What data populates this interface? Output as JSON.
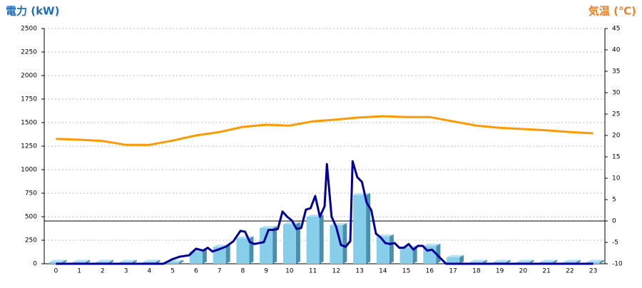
{
  "chart_data": {
    "type": "bar",
    "y_label": "電力 (kW)",
    "y2_label": "気温 (℃)",
    "categories": [
      "0",
      "1",
      "2",
      "3",
      "4",
      "5",
      "6",
      "7",
      "8",
      "9",
      "10",
      "11",
      "12",
      "13",
      "14",
      "15",
      "16",
      "17",
      "18",
      "19",
      "20",
      "21",
      "22",
      "23"
    ],
    "ylim": [
      0,
      2500
    ],
    "yticks": [
      0,
      250,
      500,
      750,
      1000,
      1250,
      1500,
      1750,
      2000,
      2250,
      2500
    ],
    "y2lim": [
      -10,
      45
    ],
    "y2ticks": [
      -10,
      -5,
      0,
      5,
      10,
      15,
      20,
      25,
      30,
      35,
      40,
      45
    ],
    "grid": true,
    "y2_zero_line": true,
    "series": [
      {
        "type": "bar",
        "color": "#87ceeb",
        "values": [
          20,
          20,
          20,
          20,
          20,
          20,
          130,
          180,
          270,
          380,
          420,
          500,
          410,
          730,
          290,
          170,
          190,
          70,
          20,
          20,
          20,
          20,
          20,
          20
        ]
      },
      {
        "type": "line",
        "color": "#000099",
        "x": [
          0,
          4.6,
          5,
          5.3,
          5.7,
          6,
          6.3,
          6.5,
          6.7,
          7,
          7.3,
          7.6,
          7.9,
          8.1,
          8.3,
          8.5,
          8.7,
          8.9,
          9.1,
          9.3,
          9.5,
          9.7,
          9.9,
          10.1,
          10.3,
          10.5,
          10.7,
          10.9,
          11.1,
          11.3,
          11.5,
          11.6,
          11.8,
          12,
          12.2,
          12.4,
          12.6,
          12.7,
          12.9,
          13.1,
          13.3,
          13.5,
          13.7,
          13.9,
          14.1,
          14.3,
          14.5,
          14.7,
          14.9,
          15.1,
          15.3,
          15.5,
          15.7,
          15.9,
          16.1,
          16.3,
          16.5,
          16.7,
          16.9,
          17.1,
          23
        ],
        "values": [
          0,
          0,
          50,
          75,
          90,
          160,
          140,
          170,
          130,
          155,
          185,
          240,
          350,
          340,
          230,
          210,
          220,
          230,
          360,
          360,
          370,
          555,
          500,
          460,
          370,
          380,
          575,
          590,
          720,
          500,
          610,
          1060,
          500,
          390,
          200,
          180,
          240,
          1090,
          920,
          870,
          650,
          570,
          320,
          280,
          220,
          210,
          220,
          170,
          170,
          210,
          150,
          190,
          190,
          140,
          150,
          100,
          50,
          0,
          0,
          0,
          0
        ]
      },
      {
        "type": "line",
        "axis": "y2",
        "color": "#ff9900",
        "values": [
          19.2,
          19,
          18.7,
          17.8,
          17.8,
          18.8,
          20,
          20.8,
          22,
          22.5,
          22.3,
          23.3,
          23.7,
          24.2,
          24.5,
          24.3,
          24.3,
          23.3,
          22.3,
          21.8,
          21.5,
          21.2,
          20.8,
          20.5
        ]
      }
    ]
  }
}
